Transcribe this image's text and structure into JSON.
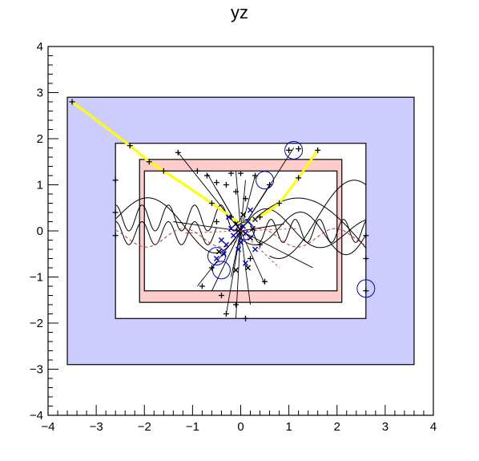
{
  "chart_data": {
    "type": "scatter",
    "title": "yz",
    "xlabel": "",
    "ylabel": "",
    "xlim": [
      -4,
      4
    ],
    "ylim": [
      -4,
      4
    ],
    "grid": false,
    "x_ticks": [
      -4,
      -3,
      -2,
      -1,
      0,
      1,
      2,
      3,
      4
    ],
    "y_ticks": [
      -4,
      -3,
      -2,
      -1,
      0,
      1,
      2,
      3,
      4
    ],
    "x_tick_labels": [
      "−4",
      "−3",
      "−2",
      "−1",
      "0",
      "1",
      "2",
      "3",
      "4"
    ],
    "y_tick_labels": [
      "−4",
      "−3",
      "−2",
      "−1",
      "0",
      "1",
      "2",
      "3",
      "4"
    ],
    "colors": {
      "outer_fill": "#ccccff",
      "inner_fill": "#ffcccc",
      "track_highlight": "#ffff00",
      "marker": "#000000",
      "circle": "#0000cc",
      "dashed": "#cc0000"
    },
    "boxes": [
      {
        "name": "outer-volume",
        "x": [
          -3.6,
          3.6
        ],
        "y": [
          -2.9,
          2.9
        ],
        "fill": "#ccccff"
      },
      {
        "name": "white-frame",
        "x": [
          -2.6,
          2.6
        ],
        "y": [
          -1.9,
          1.9
        ],
        "fill": "#ffffff"
      },
      {
        "name": "pink-frame",
        "x": [
          -2.1,
          2.1
        ],
        "y": [
          -1.55,
          1.55
        ],
        "fill": "#ffcccc"
      },
      {
        "name": "inner-frame",
        "x": [
          -2.0,
          2.0
        ],
        "y": [
          -1.3,
          1.3
        ],
        "fill": "#ffffff"
      }
    ],
    "highlight_track": {
      "x": [
        -3.5,
        -2.3,
        -1.9,
        -1.6,
        -0.6,
        0.0,
        0.4,
        0.8,
        1.2,
        1.6
      ],
      "y": [
        2.8,
        1.85,
        1.5,
        1.3,
        0.6,
        0.15,
        0.3,
        0.6,
        1.15,
        1.75
      ]
    },
    "track_markers": [
      [
        -3.5,
        2.8
      ],
      [
        -2.3,
        1.85
      ],
      [
        -1.9,
        1.5
      ],
      [
        -1.6,
        1.3
      ],
      [
        -0.6,
        0.6
      ],
      [
        -0.2,
        0.3
      ],
      [
        0.4,
        0.3
      ],
      [
        0.8,
        0.6
      ],
      [
        1.2,
        1.15
      ],
      [
        1.6,
        1.75
      ],
      [
        1.0,
        1.75
      ],
      [
        1.2,
        1.78
      ],
      [
        -1.3,
        1.7
      ],
      [
        -0.9,
        1.3
      ],
      [
        -0.7,
        1.2
      ],
      [
        -0.5,
        1.05
      ],
      [
        -0.3,
        1.0
      ],
      [
        -0.2,
        1.25
      ],
      [
        -0.1,
        0.85
      ],
      [
        0.1,
        0.7
      ],
      [
        0.3,
        1.2
      ],
      [
        0.6,
        1.0
      ],
      [
        0.4,
        -0.3
      ],
      [
        0.2,
        -0.6
      ],
      [
        -0.1,
        -1.6
      ],
      [
        -0.3,
        -1.8
      ],
      [
        -0.4,
        -1.4
      ],
      [
        -0.6,
        -0.8
      ],
      [
        -0.8,
        -1.2
      ],
      [
        2.6,
        -1.3
      ],
      [
        2.6,
        -0.6
      ],
      [
        2.6,
        -0.1
      ],
      [
        -2.6,
        1.1
      ],
      [
        -2.6,
        0.4
      ],
      [
        -2.6,
        -0.1
      ],
      [
        0.0,
        1.25
      ],
      [
        -0.5,
        0.2
      ],
      [
        0.5,
        -1.1
      ],
      [
        0.1,
        -1.9
      ]
    ],
    "circle_markers": [
      [
        1.1,
        1.75
      ],
      [
        0.5,
        1.1
      ],
      [
        -0.4,
        -0.85
      ],
      [
        2.6,
        -1.25
      ],
      [
        0.1,
        0.0
      ],
      [
        -0.5,
        -0.55
      ]
    ],
    "cluster_markers": [
      [
        -0.05,
        0.0
      ],
      [
        0.05,
        0.1
      ],
      [
        0.1,
        -0.05
      ],
      [
        -0.1,
        0.15
      ],
      [
        0.15,
        0.2
      ],
      [
        -0.15,
        -0.1
      ],
      [
        0.2,
        -0.15
      ],
      [
        0.0,
        -0.25
      ],
      [
        -0.2,
        0.05
      ],
      [
        0.25,
        0.05
      ],
      [
        -0.3,
        -0.3
      ],
      [
        -0.35,
        -0.5
      ],
      [
        -0.45,
        -0.45
      ],
      [
        -0.5,
        -0.6
      ],
      [
        0.1,
        -0.7
      ],
      [
        0.15,
        -0.8
      ],
      [
        -0.05,
        -0.4
      ],
      [
        0.3,
        -0.4
      ],
      [
        0.05,
        0.35
      ],
      [
        -0.25,
        0.3
      ],
      [
        0.3,
        0.25
      ],
      [
        -0.1,
        -0.85
      ],
      [
        0.2,
        0.45
      ],
      [
        -0.4,
        -0.2
      ]
    ]
  }
}
